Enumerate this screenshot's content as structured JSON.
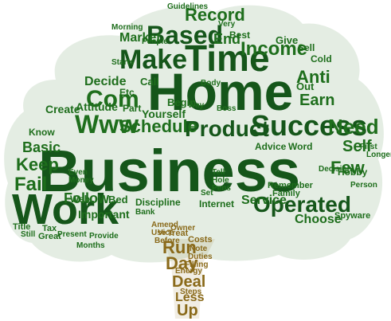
{
  "cloud": {
    "colors": {
      "crown": "#1e6e1c",
      "crown_dark": "#15561a",
      "trunk": "#8a6a1a",
      "background": "#ffffff"
    },
    "big": [
      "Business",
      "Home",
      "Work",
      "Time",
      "Make",
      "Based",
      "Success",
      "Product",
      "Operated"
    ],
    "medium": [
      "Com",
      "Www",
      "Income",
      "Record",
      "Need",
      "Earn",
      "Anti",
      "Schedule",
      "Fail",
      "Keep",
      "Basic",
      "Follow",
      "Service",
      "Self",
      "Few",
      "Choose",
      "Decide",
      "Attitude",
      "Create",
      "Market",
      "End"
    ],
    "small": [
      "Yourself",
      "Internet",
      "Discipline",
      "Important",
      "Bed",
      "Part",
      "Call",
      "Best",
      "Give",
      "Sell",
      "Cold",
      "Out",
      "Etc",
      "Begin",
      "Advice",
      "Word",
      "Remember",
      "Family",
      "Web",
      "Title",
      "Great",
      "Tax",
      "Know",
      "Hobby",
      "Spyware",
      "Decision",
      "First",
      "Longer",
      "Person",
      "Body",
      "Boss",
      "Tell",
      "Hole",
      "Pens",
      "Set",
      "Even",
      "Money",
      "Months",
      "Present",
      "Provide",
      "Bank",
      "Still",
      "Guidelines",
      "Morning",
      "Starts",
      "People",
      "Very",
      "Way"
    ],
    "trunk": [
      "Run",
      "Day",
      "Deal",
      "Less",
      "Up",
      "Energy",
      "Steps",
      "Costs",
      "Treat",
      "Vice",
      "Note",
      "Duties",
      "Filling",
      "Before",
      "Owner",
      "Use",
      "Amend"
    ]
  }
}
